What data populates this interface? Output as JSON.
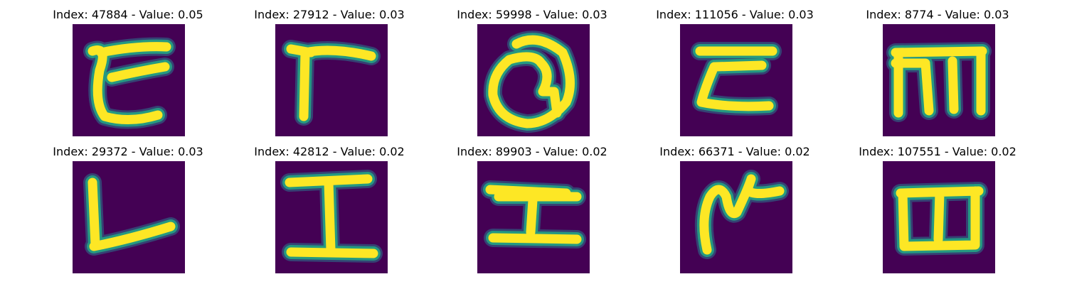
{
  "colors": {
    "background": "#440154",
    "stroke_outer": "#2a788e",
    "stroke_mid": "#22a884",
    "stroke_core": "#fde725",
    "text": "#000000"
  },
  "panels": [
    {
      "title": "Index: 47884 - Value: 0.05",
      "glyph": "curl-t"
    },
    {
      "title": "Index: 27912 - Value: 0.03",
      "glyph": "gamma-flag"
    },
    {
      "title": "Index: 59998 - Value: 0.03",
      "glyph": "loop-q"
    },
    {
      "title": "Index: 111056 - Value: 0.03",
      "glyph": "z-shape"
    },
    {
      "title": "Index: 8774 - Value: 0.03",
      "glyph": "m-comb"
    },
    {
      "title": "Index: 29372 - Value: 0.03",
      "glyph": "l-shape"
    },
    {
      "title": "Index: 42812 - Value: 0.02",
      "glyph": "i-beam"
    },
    {
      "title": "Index: 89903 - Value: 0.02",
      "glyph": "h-sideways"
    },
    {
      "title": "Index: 66371 - Value: 0.02",
      "glyph": "hook-tick"
    },
    {
      "title": "Index: 107551 - Value: 0.02",
      "glyph": "m-rotated"
    }
  ]
}
